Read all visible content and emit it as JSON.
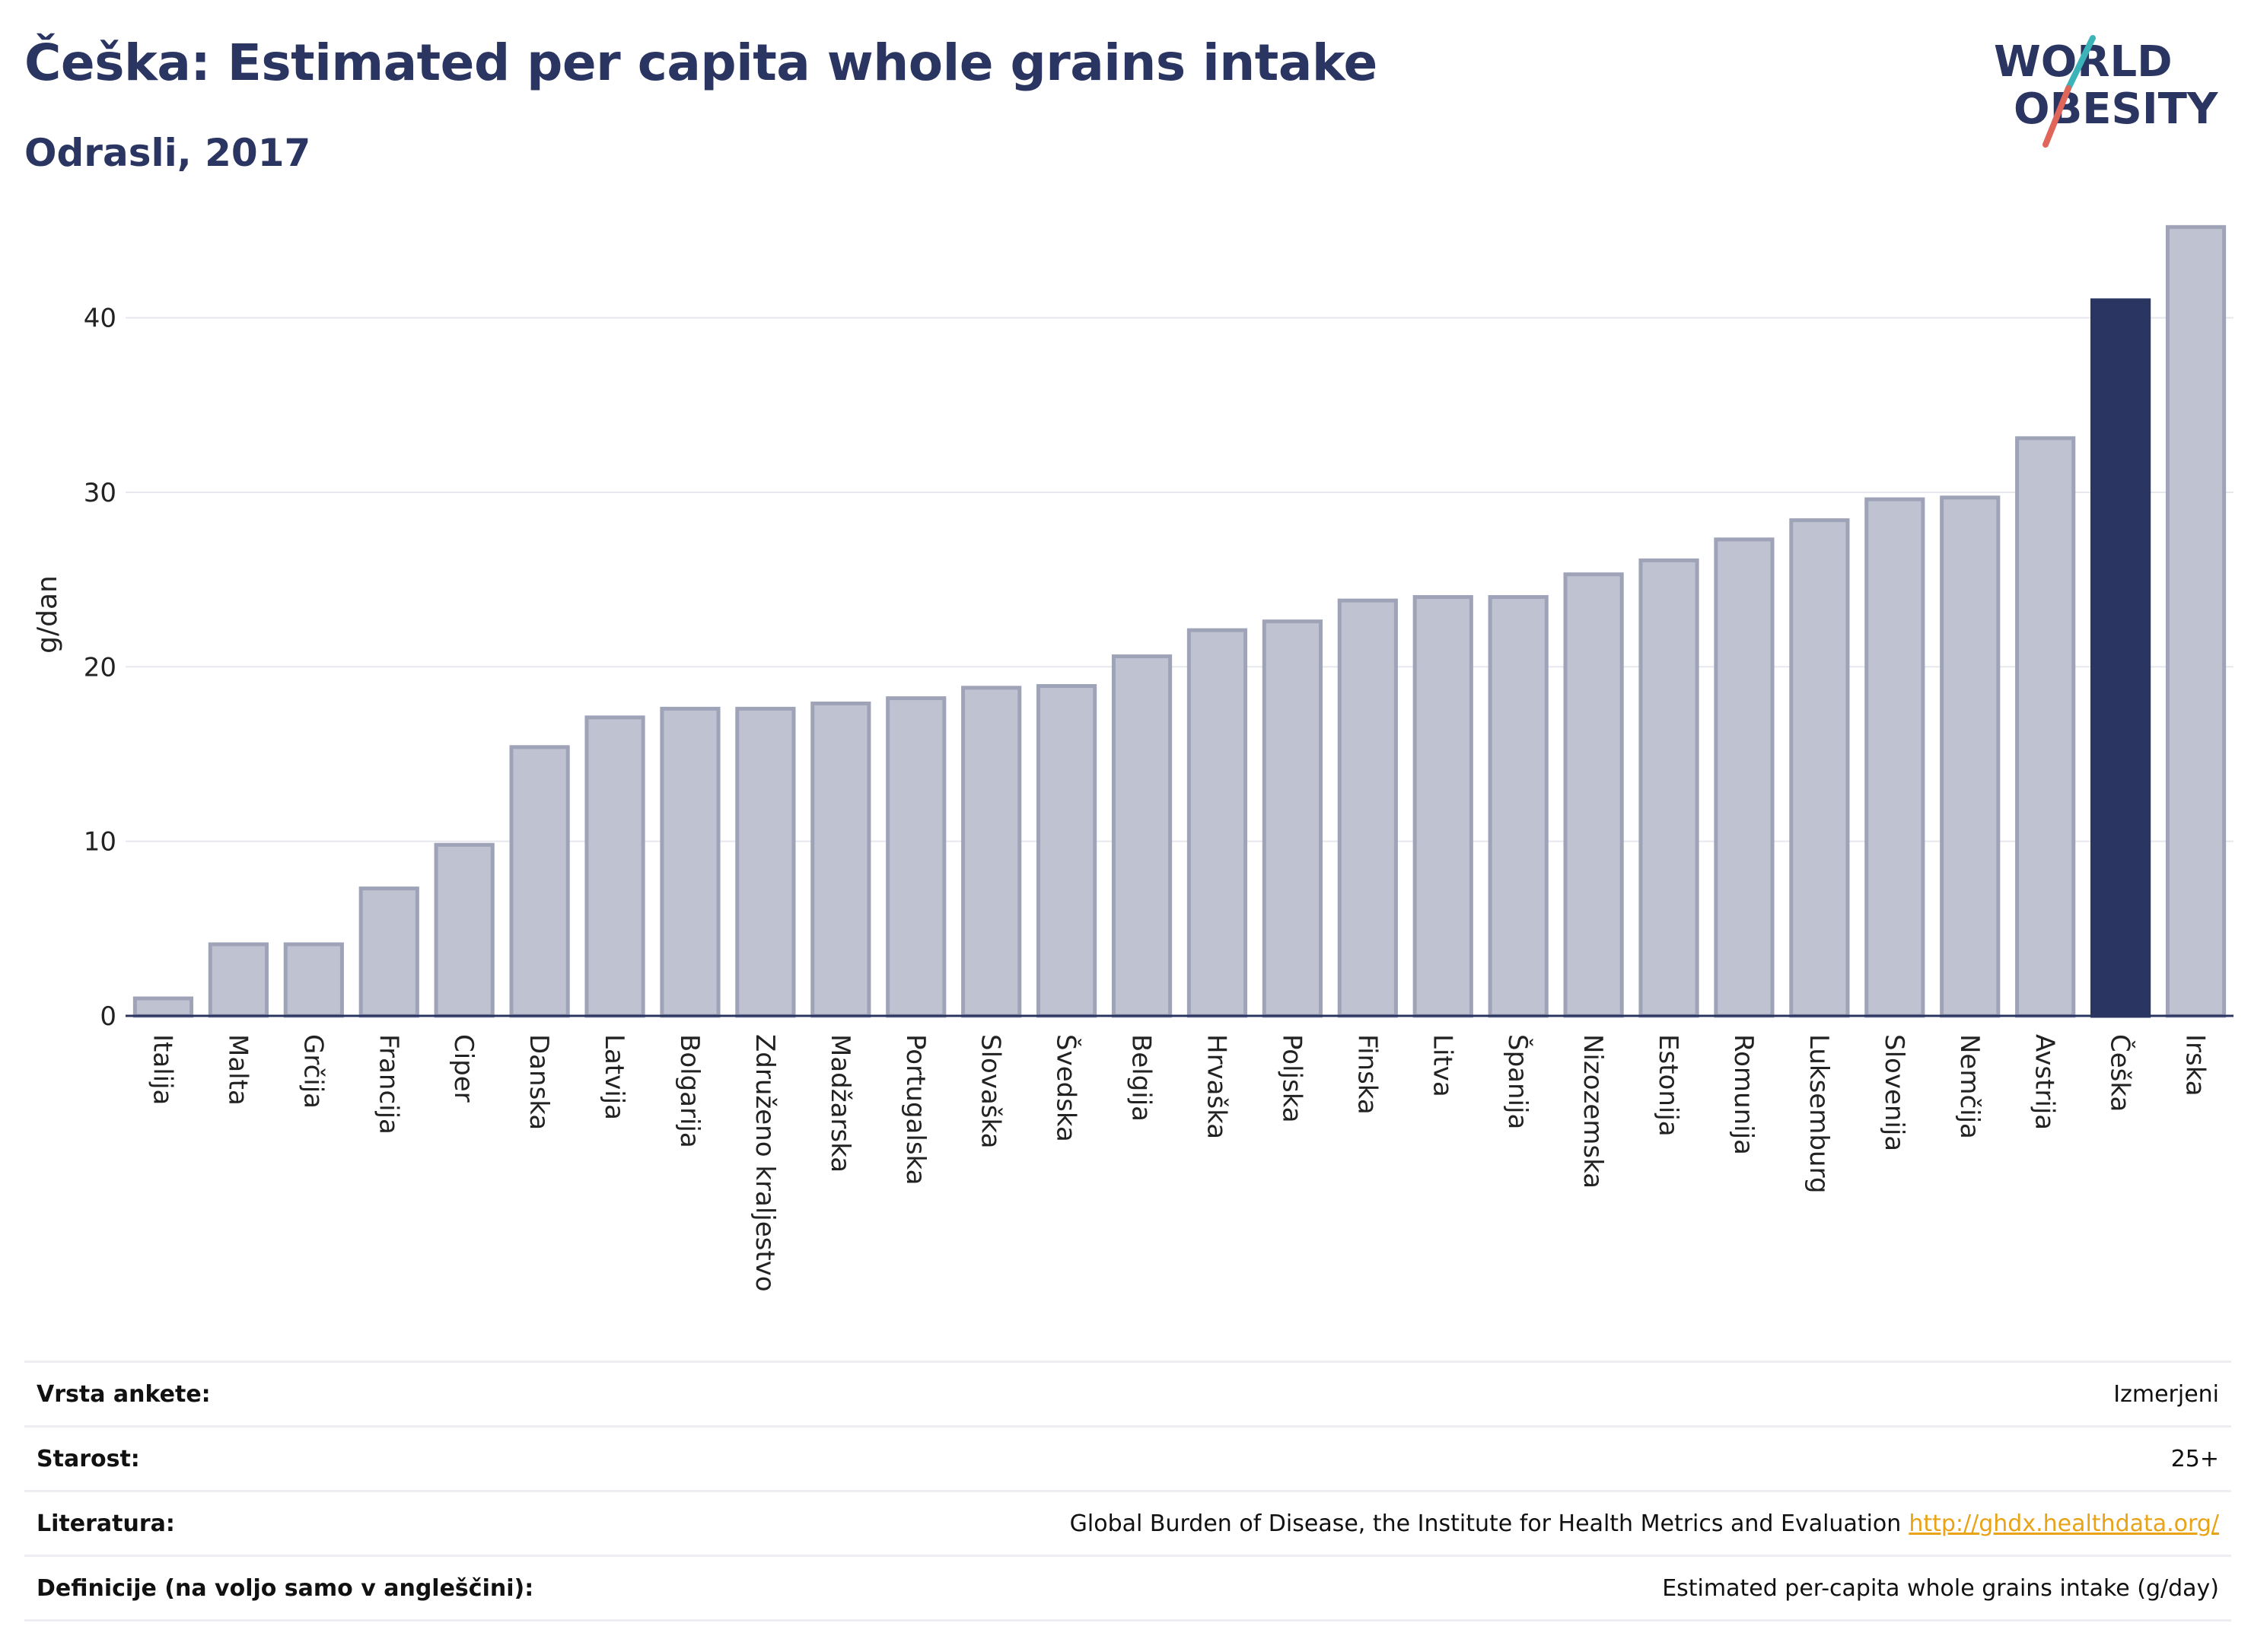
{
  "header": {
    "title": "Češka: Estimated per capita whole grains intake",
    "subtitle": "Odrasli, 2017"
  },
  "logo": {
    "line1": "WORLD",
    "line2": "OBESITY",
    "text_color": "#2a3561",
    "accent_teal": "#3bb3b8",
    "accent_red": "#e0655a"
  },
  "colors": {
    "bar_default": "#bfc3d1",
    "bar_default_border": "#9ea3b8",
    "bar_highlight": "#2a3561",
    "grid": "#e6e8ee",
    "axis": "#2a3561"
  },
  "chart_data": {
    "type": "bar",
    "ylabel": "g/dan",
    "ylim": [
      0,
      46
    ],
    "yticks": [
      0,
      10,
      20,
      30,
      40
    ],
    "grid": true,
    "highlight": "Češka",
    "categories": [
      "Italija",
      "Malta",
      "Grčija",
      "Francija",
      "Ciper",
      "Danska",
      "Latvija",
      "Bolgarija",
      "Združeno kraljestvo",
      "Madžarska",
      "Portugalska",
      "Slovaška",
      "Švedska",
      "Belgija",
      "Hrvaška",
      "Poljska",
      "Finska",
      "Litva",
      "Španija",
      "Nizozemska",
      "Estonija",
      "Romunija",
      "Luksemburg",
      "Slovenija",
      "Nemčija",
      "Avstrija",
      "Češka",
      "Irska"
    ],
    "values": [
      1.0,
      4.1,
      4.1,
      7.3,
      9.8,
      15.4,
      17.1,
      17.6,
      17.6,
      17.9,
      18.2,
      18.8,
      18.9,
      20.6,
      22.1,
      22.6,
      23.8,
      24.0,
      24.0,
      25.3,
      26.1,
      27.3,
      28.4,
      29.6,
      29.7,
      33.1,
      41.0,
      45.2
    ]
  },
  "info": [
    {
      "label": "Vrsta ankete:",
      "value": "Izmerjeni"
    },
    {
      "label": "Starost:",
      "value": "25+"
    },
    {
      "label": "Literatura:",
      "value": "Global Burden of Disease, the Institute for Health Metrics and Evaluation",
      "link": "http://ghdx.healthdata.org/"
    },
    {
      "label": "Definicije (na voljo samo v angleščini):",
      "value": "Estimated per-capita whole grains intake (g/day)"
    }
  ]
}
